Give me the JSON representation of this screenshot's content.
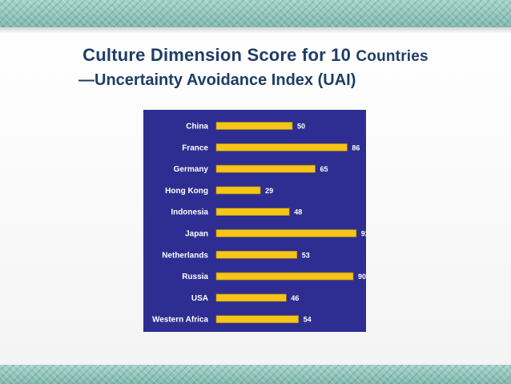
{
  "slide": {
    "title_main": "Culture Dimension Score for 10",
    "title_main_small": "Countries",
    "subtitle": "—Uncertainty Avoidance Index (UAI)"
  },
  "colors": {
    "chart_bg": "#2e2e92",
    "bar": "#f5c518",
    "bar_edge": "#b08a00",
    "label_text": "#ffffff",
    "title_text": "#1f3d66"
  },
  "chart_data": {
    "type": "bar",
    "orientation": "horizontal",
    "categories": [
      "China",
      "France",
      "Germany",
      "Hong Kong",
      "Indonesia",
      "Japan",
      "Netherlands",
      "Russia",
      "USA",
      "Western Africa"
    ],
    "values": [
      50,
      86,
      65,
      29,
      48,
      92,
      53,
      90,
      46,
      54
    ],
    "xlim": [
      0,
      100
    ],
    "title": "",
    "xlabel": "",
    "ylabel": "",
    "grid": false,
    "legend": "none"
  }
}
